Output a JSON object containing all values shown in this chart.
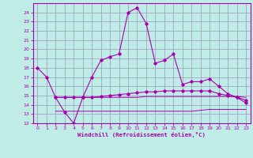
{
  "xlabel": "Windchill (Refroidissement éolien,°C)",
  "bg_color": "#c0ece8",
  "grid_color": "#9999bb",
  "line_color": "#aa00aa",
  "xlim": [
    -0.5,
    23.5
  ],
  "ylim": [
    12,
    25
  ],
  "xticks": [
    0,
    1,
    2,
    3,
    4,
    5,
    6,
    7,
    8,
    9,
    10,
    11,
    12,
    13,
    14,
    15,
    16,
    17,
    18,
    19,
    20,
    21,
    22,
    23
  ],
  "yticks": [
    12,
    13,
    14,
    15,
    16,
    17,
    18,
    19,
    20,
    21,
    22,
    23,
    24
  ],
  "series1_x": [
    0,
    1,
    2,
    3,
    4,
    5,
    6,
    7,
    8,
    9,
    10,
    11,
    12,
    13,
    14,
    15,
    16,
    17,
    18,
    19,
    20,
    21,
    22,
    23
  ],
  "series1_y": [
    18.0,
    17.0,
    14.8,
    13.2,
    12.0,
    14.8,
    17.0,
    18.8,
    19.2,
    19.5,
    24.0,
    24.5,
    22.8,
    18.5,
    18.8,
    19.5,
    16.2,
    16.5,
    16.5,
    16.8,
    16.0,
    15.2,
    14.8,
    14.2
  ],
  "series2_x": [
    2,
    3,
    4,
    5,
    6,
    7,
    8,
    9,
    10,
    11,
    12,
    13,
    14,
    15,
    16,
    17,
    18,
    19,
    20,
    21,
    22,
    23
  ],
  "series2_y": [
    14.8,
    14.8,
    14.8,
    14.8,
    14.8,
    14.9,
    15.0,
    15.1,
    15.2,
    15.3,
    15.4,
    15.4,
    15.5,
    15.5,
    15.5,
    15.5,
    15.5,
    15.5,
    15.2,
    15.0,
    14.8,
    14.5
  ],
  "series3_x": [
    2,
    3,
    4,
    5,
    6,
    7,
    8,
    9,
    10,
    11,
    12,
    13,
    14,
    15,
    16,
    17,
    18,
    19,
    20,
    21,
    22,
    23
  ],
  "series3_y": [
    14.8,
    14.8,
    14.8,
    14.8,
    14.8,
    14.8,
    14.8,
    14.8,
    14.8,
    14.8,
    14.9,
    14.9,
    14.9,
    14.9,
    14.9,
    14.9,
    14.9,
    14.9,
    14.9,
    14.9,
    14.9,
    14.8
  ],
  "series4_x": [
    2,
    3,
    4,
    5,
    6,
    7,
    8,
    9,
    10,
    11,
    12,
    13,
    14,
    15,
    16,
    17,
    18,
    19,
    20,
    21,
    22,
    23
  ],
  "series4_y": [
    13.3,
    13.3,
    13.3,
    13.3,
    13.3,
    13.3,
    13.3,
    13.3,
    13.3,
    13.3,
    13.3,
    13.3,
    13.3,
    13.3,
    13.3,
    13.3,
    13.4,
    13.5,
    13.5,
    13.5,
    13.5,
    13.5
  ]
}
